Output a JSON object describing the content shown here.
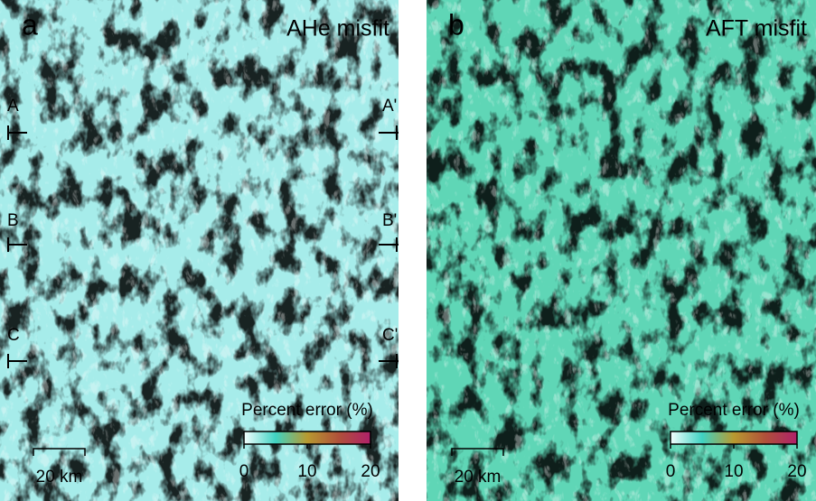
{
  "panels": [
    {
      "label": "a",
      "title": "AHe misfit",
      "profiles": [
        {
          "left": "A",
          "right": "A'"
        },
        {
          "left": "B",
          "right": "B'"
        },
        {
          "left": "C",
          "right": "C'"
        }
      ],
      "colorbar": {
        "title": "Percent error (%)",
        "lim": [
          0,
          20
        ],
        "ticks": [
          0,
          10,
          20
        ],
        "colors": [
          "#f4ffff",
          "#3fd2c2",
          "#b89a30",
          "#b0503a",
          "#b0206a"
        ]
      },
      "scalebar": {
        "label": "20 km"
      },
      "base_color": "#a6ecea",
      "texture_color": "#b48a3a"
    },
    {
      "label": "b",
      "title": "AFT misfit",
      "profiles": [],
      "colorbar": {
        "title": "Percent error (%)",
        "lim": [
          0,
          20
        ],
        "ticks": [
          0,
          10,
          20
        ],
        "colors": [
          "#f4ffff",
          "#3fd2c2",
          "#b89a30",
          "#b0503a",
          "#b0206a"
        ]
      },
      "scalebar": {
        "label": "20 km"
      },
      "base_color": "#5fd6b6",
      "texture_color": "#a86a3a"
    }
  ]
}
